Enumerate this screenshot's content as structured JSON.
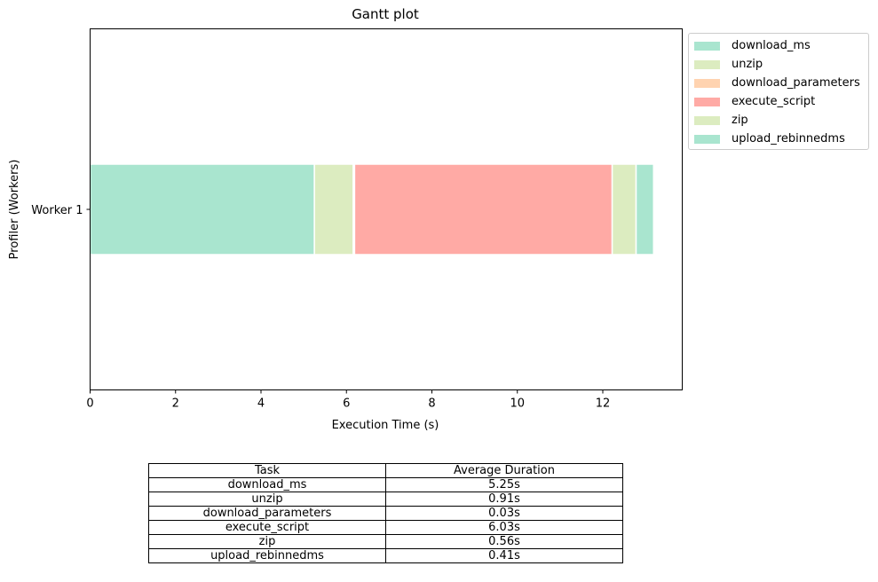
{
  "chart_data": {
    "type": "gantt",
    "title": "Gantt plot",
    "xlabel": "Execution Time (s)",
    "ylabel": "Profiler (Workers)",
    "xlim": [
      0,
      13.86
    ],
    "xticks": [
      "0",
      "2",
      "4",
      "6",
      "8",
      "10",
      "12"
    ],
    "workers": [
      "Worker 1"
    ],
    "segments": [
      {
        "worker": "Worker 1",
        "task": "download_ms",
        "start": 0.0,
        "end": 5.25
      },
      {
        "worker": "Worker 1",
        "task": "unzip",
        "start": 5.25,
        "end": 6.16
      },
      {
        "worker": "Worker 1",
        "task": "download_parameters",
        "start": 6.16,
        "end": 6.19
      },
      {
        "worker": "Worker 1",
        "task": "execute_script",
        "start": 6.19,
        "end": 12.22
      },
      {
        "worker": "Worker 1",
        "task": "zip",
        "start": 12.22,
        "end": 12.78
      },
      {
        "worker": "Worker 1",
        "task": "upload_rebinnedms",
        "start": 12.78,
        "end": 13.19
      }
    ],
    "legend": [
      {
        "label": "download_ms",
        "color": "#a9e5cf"
      },
      {
        "label": "unzip",
        "color": "#dcecc0"
      },
      {
        "label": "download_parameters",
        "color": "#ffd3b0"
      },
      {
        "label": "execute_script",
        "color": "#ffaaa5"
      },
      {
        "label": "zip",
        "color": "#dcecc0"
      },
      {
        "label": "upload_rebinnedms",
        "color": "#a9e5cf"
      }
    ],
    "legend_position": "outside-top-right"
  },
  "table": {
    "headers": [
      "Task",
      "Average Duration"
    ],
    "rows": [
      [
        "download_ms",
        "5.25s"
      ],
      [
        "unzip",
        "0.91s"
      ],
      [
        "download_parameters",
        "0.03s"
      ],
      [
        "execute_script",
        "6.03s"
      ],
      [
        "zip",
        "0.56s"
      ],
      [
        "upload_rebinnedms",
        "0.41s"
      ]
    ]
  }
}
